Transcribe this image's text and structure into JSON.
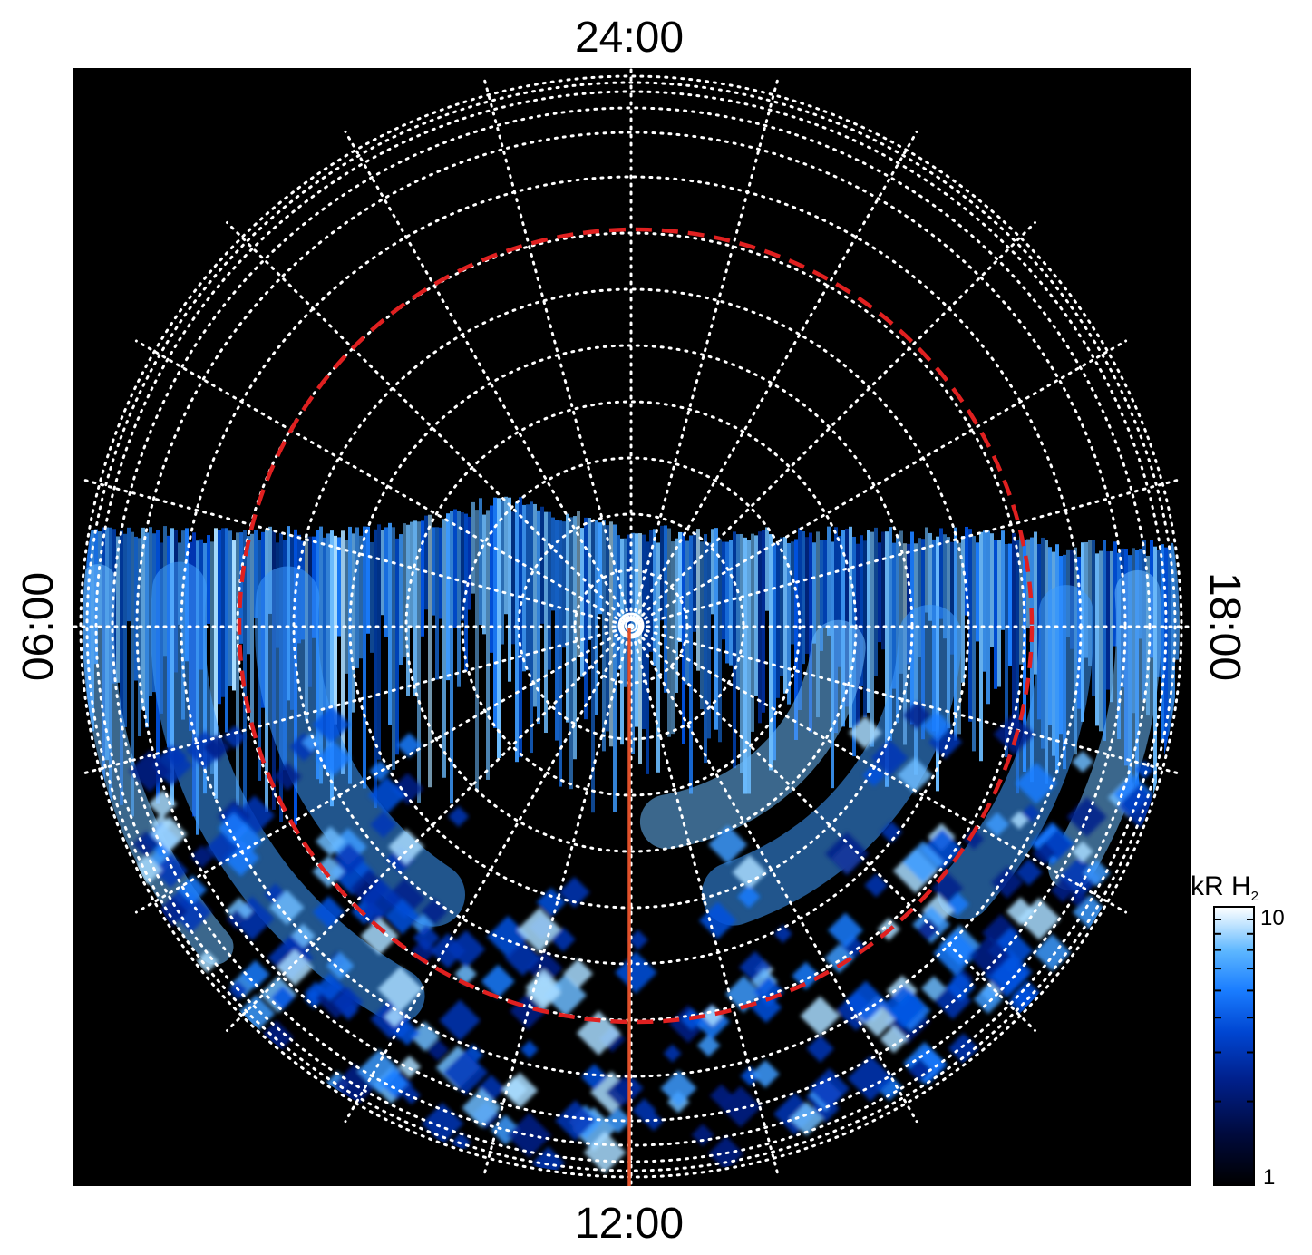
{
  "local_time_labels": {
    "top": "24:00",
    "bottom": "12:00",
    "left": "06:00",
    "right": "18:00"
  },
  "colorbar": {
    "unit": "kR H",
    "unit_subscript": "2",
    "max_label": "10",
    "min_label": "1",
    "scale": "log",
    "colors": [
      "#000000",
      "#000a3c",
      "#00208c",
      "#0046d2",
      "#1a7dff",
      "#5cb6ff",
      "#c5e6ff",
      "#ffffff"
    ]
  },
  "colors": {
    "background": "#000000",
    "grid": "#ffffff",
    "reference_circle": "#e02020",
    "meridian_line": "#e0502a"
  }
}
